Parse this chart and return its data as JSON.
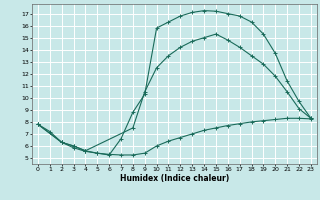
{
  "background_color": "#c8e8e8",
  "grid_color": "#ffffff",
  "line_color": "#1a6b5a",
  "xlabel": "Humidex (Indice chaleur)",
  "xlim": [
    -0.5,
    23.5
  ],
  "ylim": [
    4.5,
    17.8
  ],
  "xticks": [
    0,
    1,
    2,
    3,
    4,
    5,
    6,
    7,
    8,
    9,
    10,
    11,
    12,
    13,
    14,
    15,
    16,
    17,
    18,
    19,
    20,
    21,
    22,
    23
  ],
  "yticks": [
    5,
    6,
    7,
    8,
    9,
    10,
    11,
    12,
    13,
    14,
    15,
    16,
    17
  ],
  "curve_bottom_x": [
    0,
    1,
    2,
    3,
    4,
    5,
    6,
    7,
    8,
    9,
    10,
    11,
    12,
    13,
    14,
    15,
    16,
    17,
    18,
    19,
    20,
    21,
    22,
    23
  ],
  "curve_bottom_y": [
    7.8,
    7.2,
    6.3,
    5.85,
    5.55,
    5.4,
    5.3,
    5.25,
    5.25,
    5.4,
    6.0,
    6.4,
    6.7,
    7.0,
    7.3,
    7.5,
    7.7,
    7.85,
    8.0,
    8.1,
    8.2,
    8.3,
    8.3,
    8.25
  ],
  "curve_top_x": [
    0,
    2,
    3,
    4,
    5,
    6,
    7,
    8,
    9,
    10,
    11,
    12,
    13,
    14,
    15,
    16,
    17,
    18,
    19,
    20,
    21,
    22,
    23
  ],
  "curve_top_y": [
    7.8,
    6.3,
    6.0,
    5.6,
    5.4,
    5.25,
    6.6,
    8.8,
    10.3,
    15.8,
    16.3,
    16.8,
    17.1,
    17.25,
    17.2,
    17.0,
    16.8,
    16.3,
    15.3,
    13.7,
    11.4,
    9.7,
    8.3
  ],
  "curve_mid_x": [
    0,
    2,
    3,
    4,
    8,
    9,
    10,
    11,
    12,
    13,
    14,
    15,
    16,
    17,
    18,
    19,
    20,
    21,
    22,
    23
  ],
  "curve_mid_y": [
    7.8,
    6.3,
    6.0,
    5.6,
    7.5,
    10.5,
    12.5,
    13.5,
    14.2,
    14.7,
    15.0,
    15.3,
    14.8,
    14.2,
    13.5,
    12.8,
    11.8,
    10.5,
    9.1,
    8.3
  ]
}
